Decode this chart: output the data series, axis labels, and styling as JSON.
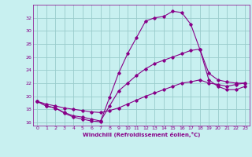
{
  "title": "",
  "xlabel": "Windchill (Refroidissement éolien,°C)",
  "ylabel": "",
  "bg_color": "#c8f0f0",
  "line_color": "#880088",
  "grid_color": "#99cccc",
  "ylim": [
    15.5,
    34.0
  ],
  "xlim": [
    -0.5,
    23.5
  ],
  "yticks": [
    16,
    18,
    20,
    22,
    24,
    26,
    28,
    30,
    32
  ],
  "xticks": [
    0,
    1,
    2,
    3,
    4,
    5,
    6,
    7,
    8,
    9,
    10,
    11,
    12,
    13,
    14,
    15,
    16,
    17,
    18,
    19,
    20,
    21,
    22,
    23
  ],
  "curve1_x": [
    0,
    1,
    2,
    3,
    4,
    5,
    6,
    7,
    8,
    9,
    10,
    11,
    12,
    13,
    14,
    15,
    16,
    17,
    18,
    19,
    20,
    21,
    22,
    23
  ],
  "curve1_y": [
    19.2,
    18.5,
    18.2,
    17.4,
    16.8,
    16.5,
    16.2,
    16.1,
    19.8,
    23.5,
    26.5,
    29.0,
    31.5,
    32.0,
    32.2,
    33.0,
    32.8,
    31.0,
    27.2,
    23.5,
    22.5,
    22.2,
    22.0,
    22.0
  ],
  "curve2_x": [
    0,
    1,
    2,
    3,
    4,
    5,
    6,
    7,
    8,
    9,
    10,
    11,
    12,
    13,
    14,
    15,
    16,
    17,
    18,
    19,
    20,
    21,
    22,
    23
  ],
  "curve2_y": [
    19.2,
    18.5,
    18.2,
    17.5,
    17.0,
    16.8,
    16.5,
    16.2,
    18.5,
    20.8,
    22.0,
    23.2,
    24.2,
    25.0,
    25.5,
    26.0,
    26.5,
    27.0,
    27.2,
    22.5,
    21.5,
    21.0,
    21.0,
    21.5
  ],
  "curve3_x": [
    0,
    1,
    2,
    3,
    4,
    5,
    6,
    7,
    8,
    9,
    10,
    11,
    12,
    13,
    14,
    15,
    16,
    17,
    18,
    19,
    20,
    21,
    22,
    23
  ],
  "curve3_y": [
    19.2,
    18.8,
    18.5,
    18.2,
    18.0,
    17.8,
    17.6,
    17.5,
    17.8,
    18.2,
    18.8,
    19.4,
    20.0,
    20.5,
    21.0,
    21.5,
    22.0,
    22.2,
    22.5,
    22.0,
    21.8,
    21.5,
    21.8,
    22.0
  ]
}
